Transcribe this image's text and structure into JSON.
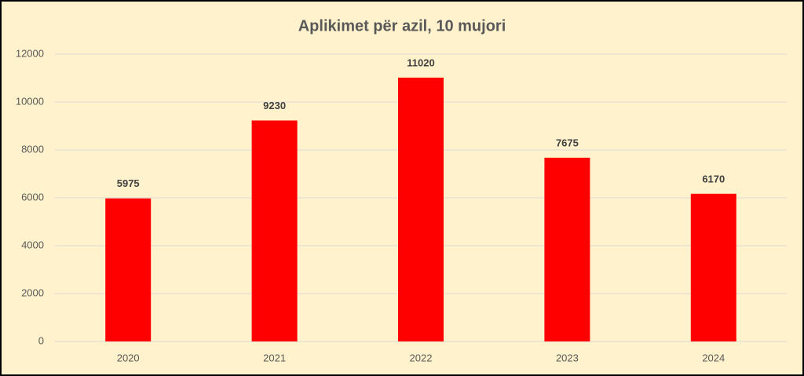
{
  "chart_data": {
    "type": "bar",
    "title": "Aplikimet për azil, 10 mujori",
    "categories": [
      "2020",
      "2021",
      "2022",
      "2023",
      "2024"
    ],
    "values": [
      5975,
      9230,
      11020,
      7675,
      6170
    ],
    "color": "#ff0000",
    "ylim": [
      0,
      12000
    ],
    "yticks": [
      0,
      2000,
      4000,
      6000,
      8000,
      10000,
      12000
    ],
    "grid": true
  }
}
